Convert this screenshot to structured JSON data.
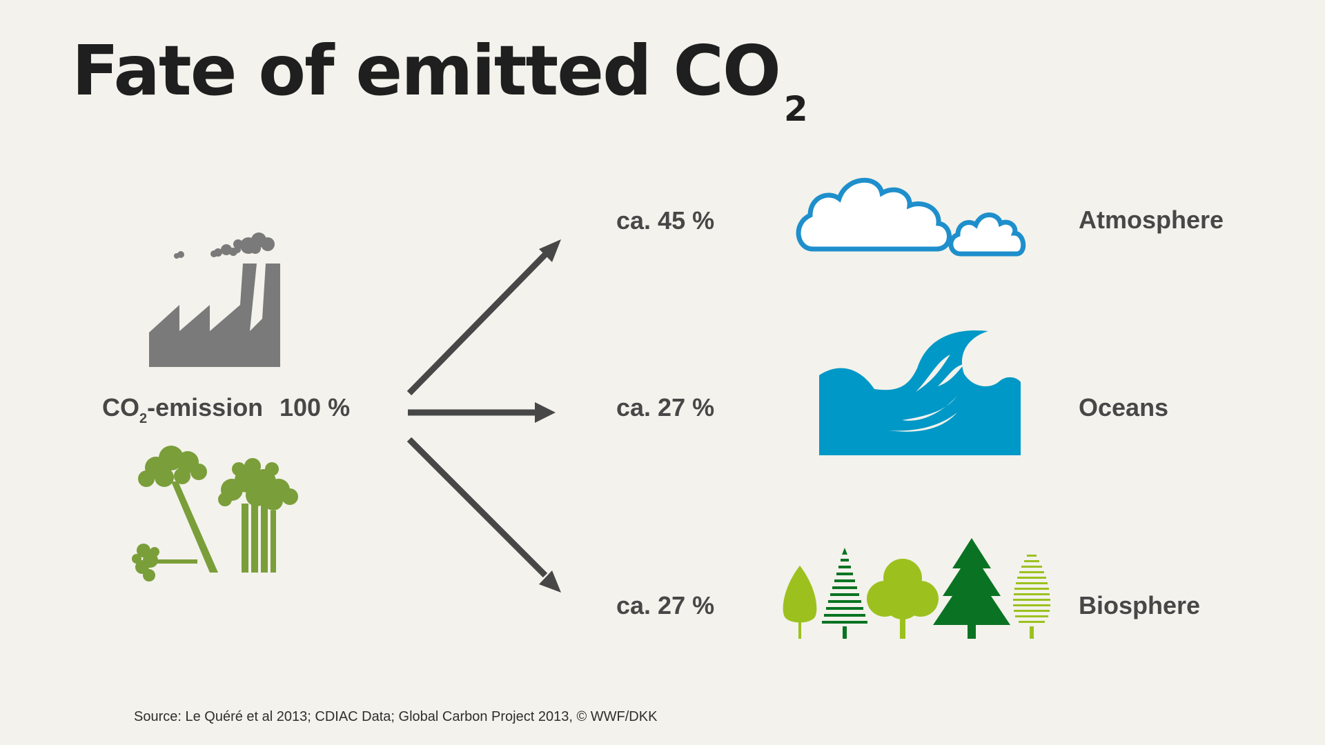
{
  "title": {
    "main": "Fate of emitted CO",
    "subscript": "2"
  },
  "source": {
    "emission_prefix": "CO",
    "emission_subscript": "2",
    "emission_suffix": "-emission",
    "emission_value": "100 %"
  },
  "sinks": [
    {
      "name": "Atmosphere",
      "share": "ca. 45 %",
      "icon": "cloud-icon"
    },
    {
      "name": "Oceans",
      "share": "ca. 27 %",
      "icon": "wave-icon"
    },
    {
      "name": "Biosphere",
      "share": "ca. 27 %",
      "icon": "trees-icon"
    }
  ],
  "footer": {
    "citation": "Source: Le Quéré et al 2013; CDIAC Data; Global Carbon Project 2013, © WWF/DKK"
  },
  "colors": {
    "background": "#f3f2ec",
    "arrow": "#474747",
    "factory": "#7a7a7a",
    "forest": "#7a9e3a",
    "cloud": "#1e8fcc",
    "ocean": "#0098c6",
    "tree_light": "#9cc11e",
    "tree_dark": "#0a7323"
  }
}
